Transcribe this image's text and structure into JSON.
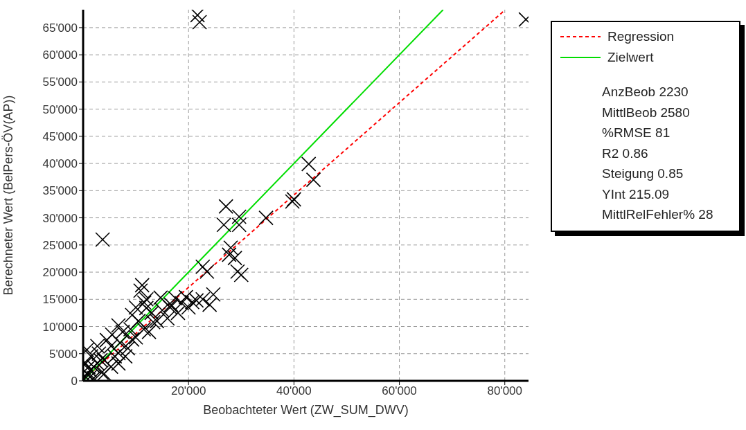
{
  "chart_data": {
    "type": "scatter",
    "xlabel": "Beobachteter Wert (ZW_SUM_DWV)",
    "ylabel": "Berechneter Wert (BelPers-ÖV(AP))",
    "xlim": [
      0,
      84500
    ],
    "ylim": [
      0,
      68300
    ],
    "xticks": [
      {
        "value": 20000,
        "label": "20'000"
      },
      {
        "value": 40000,
        "label": "40'000"
      },
      {
        "value": 60000,
        "label": "60'000"
      },
      {
        "value": 80000,
        "label": "80'000"
      }
    ],
    "yticks": [
      {
        "value": 0,
        "label": "0"
      },
      {
        "value": 5000,
        "label": "5'000"
      },
      {
        "value": 10000,
        "label": "10'000"
      },
      {
        "value": 15000,
        "label": "15'000"
      },
      {
        "value": 20000,
        "label": "20'000"
      },
      {
        "value": 25000,
        "label": "25'000"
      },
      {
        "value": 30000,
        "label": "30'000"
      },
      {
        "value": 35000,
        "label": "35'000"
      },
      {
        "value": 40000,
        "label": "40'000"
      },
      {
        "value": 45000,
        "label": "45'000"
      },
      {
        "value": 50000,
        "label": "50'000"
      },
      {
        "value": 55000,
        "label": "55'000"
      },
      {
        "value": 60000,
        "label": "60'000"
      },
      {
        "value": 65000,
        "label": "65'000"
      }
    ],
    "grid": true,
    "legend": "top right",
    "series": [
      {
        "color": "#000000",
        "marker": "cross",
        "x": [
          3700,
          21700,
          22100,
          84000,
          27100,
          26700,
          29600,
          29600,
          34700,
          40000,
          39700,
          42800,
          43700,
          28000,
          27700,
          28800,
          29300,
          30000,
          23500,
          22700,
          11200,
          10900,
          11600,
          16700,
          18700,
          20700,
          22700,
          24700,
          24000,
          21500,
          19500,
          17500,
          13300,
          16000,
          9300,
          6700,
          4000,
          5300,
          2700,
          700,
          6700,
          9300,
          12000,
          14700,
          800,
          1300,
          2000,
          2700,
          3300,
          4000,
          5300,
          6700,
          8000,
          1300,
          500,
          1500,
          3000,
          4500,
          5500,
          7500,
          10000,
          11500,
          12500,
          14000,
          15000,
          18000,
          20000,
          8500,
          10500,
          13000,
          16500,
          2000,
          3500,
          6000,
          7000,
          9000,
          200,
          400,
          1000,
          12000,
          10000
        ],
        "values": [
          26000,
          67300,
          66000,
          66500,
          32100,
          28700,
          30200,
          28700,
          30000,
          33400,
          33000,
          39900,
          37000,
          24500,
          23200,
          22600,
          20100,
          19500,
          20100,
          21000,
          17600,
          16600,
          14400,
          14000,
          14300,
          14500,
          15000,
          15900,
          14000,
          14800,
          15400,
          15200,
          10800,
          11500,
          7600,
          5100,
          3800,
          6400,
          6400,
          5700,
          10200,
          12100,
          13400,
          15300,
          1300,
          1900,
          2600,
          3200,
          3800,
          1300,
          2600,
          3200,
          4500,
          700,
          3200,
          4500,
          5000,
          7500,
          8500,
          9000,
          8000,
          9500,
          9000,
          11000,
          13000,
          12500,
          13500,
          6000,
          11000,
          12500,
          13500,
          500,
          1500,
          4500,
          7000,
          9500,
          300,
          800,
          2500,
          15000,
          13500
        ]
      },
      {
        "type": "line",
        "name": "Regression",
        "color": "#ff0000",
        "line_style": "dashed",
        "x": [
          0,
          80000
        ],
        "values": [
          200,
          68200
        ]
      },
      {
        "type": "line",
        "name": "Zielwert",
        "color": "#00dd00",
        "line_style": "solid",
        "x": [
          0,
          68300
        ],
        "values": [
          0,
          68300
        ]
      }
    ],
    "annotations": [
      "AnzBeob 2230",
      "MittlBeob 2580",
      "%RMSE 81",
      "R2 0.86",
      "Steigung 0.85",
      "YInt 215.09",
      "MittlRelFehler% 28"
    ]
  }
}
